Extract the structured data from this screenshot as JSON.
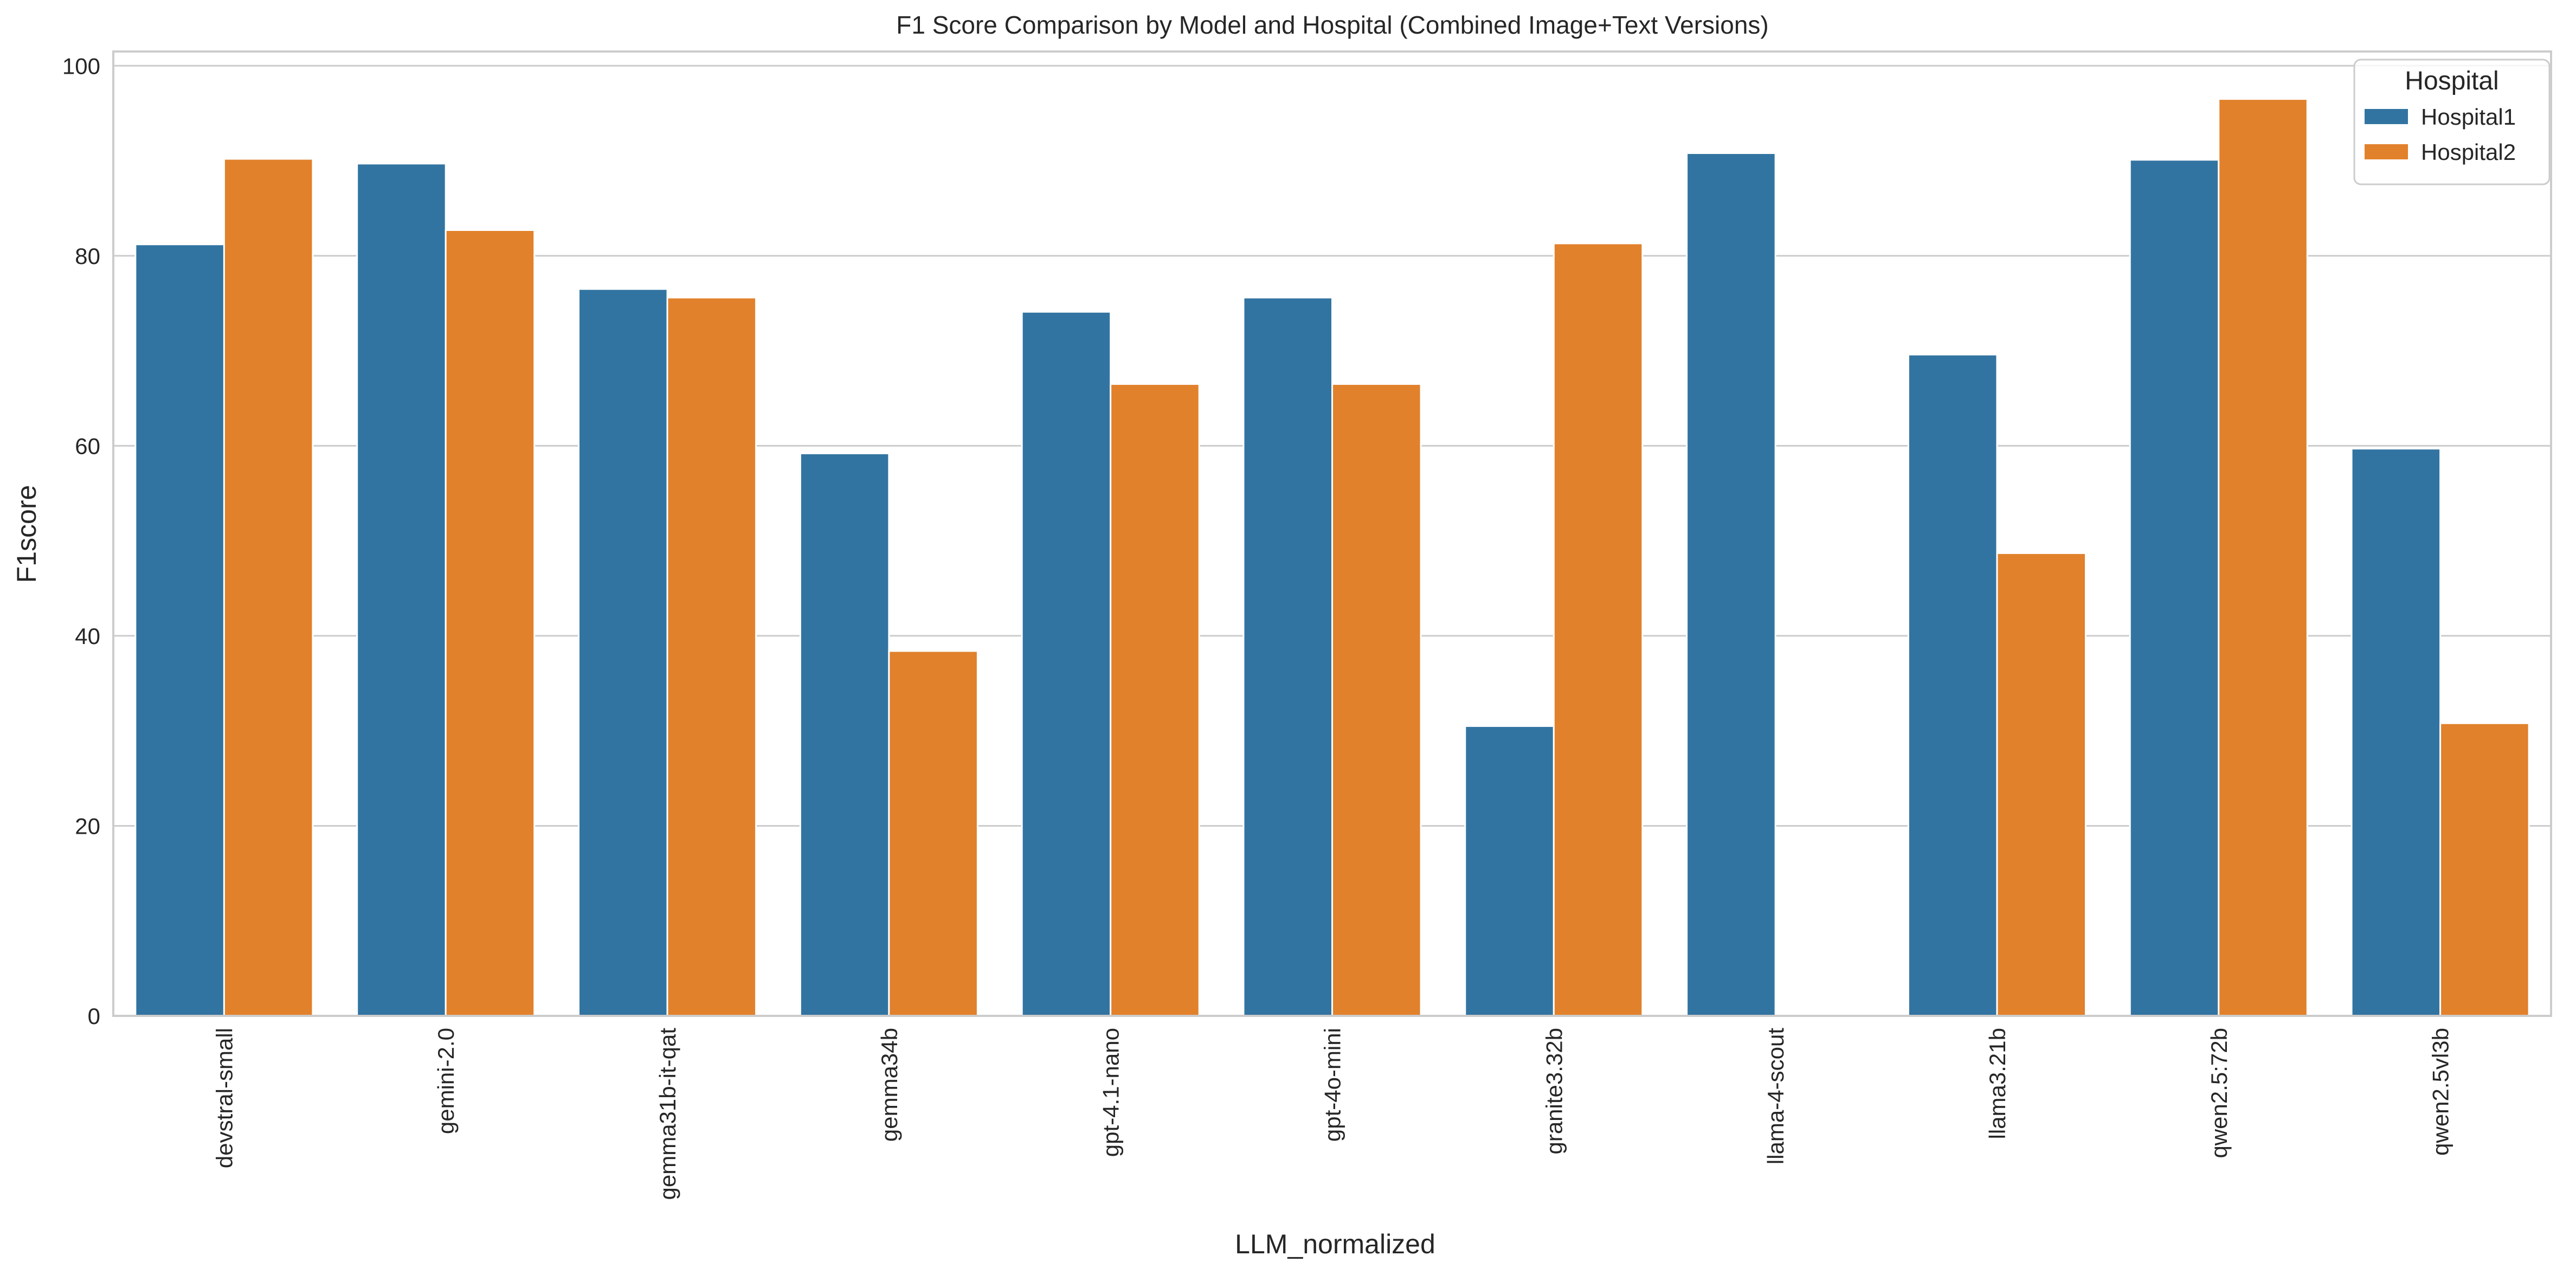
{
  "chart_data": {
    "type": "bar",
    "title": "F1 Score Comparison by Model and Hospital (Combined Image+Text Versions)",
    "xlabel": "LLM_normalized",
    "ylabel": "F1score",
    "ylim": [
      0,
      101.5
    ],
    "yticks": [
      0,
      20,
      40,
      60,
      80,
      100
    ],
    "grid": true,
    "legend": {
      "title": "Hospital",
      "placement": "top-right"
    },
    "categories": [
      "devstral-small",
      "gemini-2.0",
      "gemma31b-it-qat",
      "gemma34b",
      "gpt-4.1-nano",
      "gpt-4o-mini",
      "granite3.32b",
      "llama-4-scout",
      "llama3.21b",
      "qwen2.5:72b",
      "qwen2.5vl3b"
    ],
    "series": [
      {
        "name": "Hospital1",
        "color": "#3274a1",
        "values": [
          81.2,
          89.7,
          76.5,
          59.2,
          74.1,
          75.6,
          30.5,
          90.8,
          69.6,
          90.1,
          59.7
        ]
      },
      {
        "name": "Hospital2",
        "color": "#e1812c",
        "values": [
          90.2,
          82.7,
          75.6,
          38.4,
          66.5,
          66.5,
          81.3,
          0,
          48.7,
          96.5,
          30.8
        ]
      }
    ]
  }
}
